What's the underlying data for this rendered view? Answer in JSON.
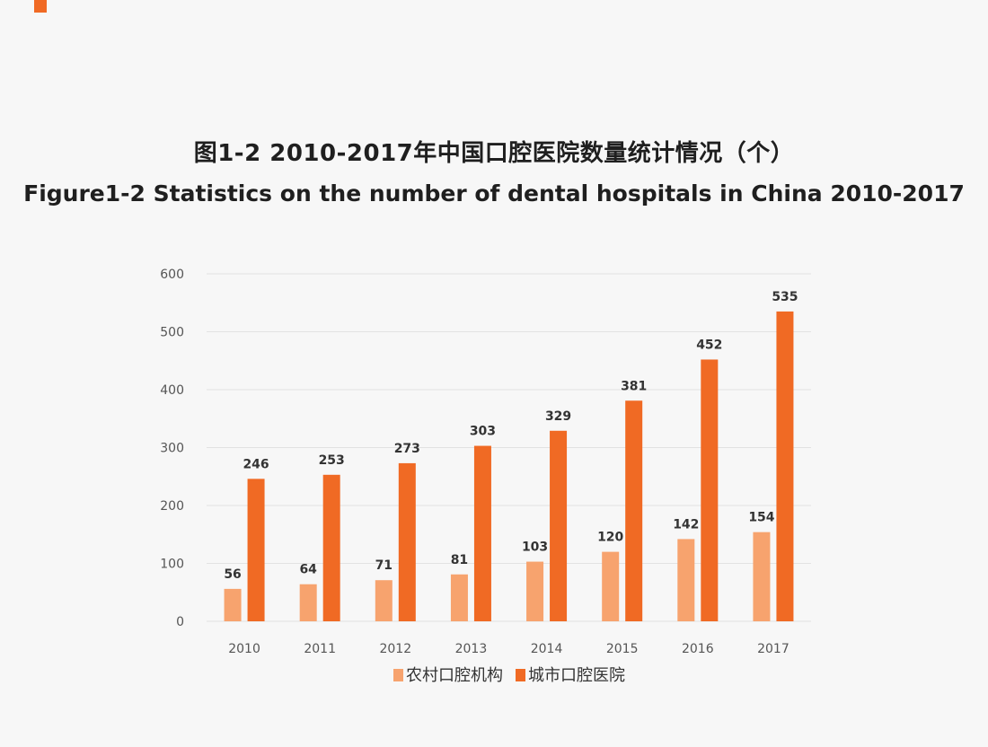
{
  "chart_data": {
    "type": "bar",
    "title": "图1-2  2010-2017年中国口腔医院数量统计情况（个）",
    "subtitle": "Figure1-2 Statistics on the number of dental hospitals in China 2010-2017",
    "categories": [
      "2010",
      "2011",
      "2012",
      "2013",
      "2014",
      "2015",
      "2016",
      "2017"
    ],
    "series": [
      {
        "name": "农村口腔机构",
        "color": "#f7a36e",
        "values": [
          56,
          64,
          71,
          81,
          103,
          120,
          142,
          154
        ]
      },
      {
        "name": "城市口腔医院",
        "color": "#f06a24",
        "values": [
          246,
          253,
          273,
          303,
          329,
          381,
          452,
          535
        ]
      }
    ],
    "ylim": [
      0,
      600
    ],
    "yticks": [
      0,
      100,
      200,
      300,
      400,
      500,
      600
    ],
    "grid": true,
    "legend": "bottom"
  }
}
